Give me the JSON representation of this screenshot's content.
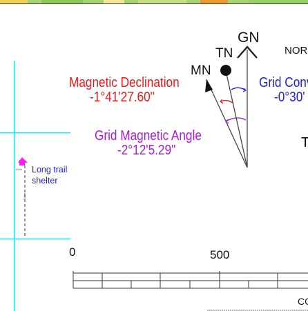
{
  "north_arrows": {
    "gn_label": "GN",
    "tn_label": "TN",
    "mn_label": "MN"
  },
  "declinations": {
    "magnetic_title": "Magnetic Declination",
    "magnetic_value": "-1°41'27.60\"",
    "grid_magnetic_title": "Grid Magnetic Angle",
    "grid_magnetic_value": "-2°12'5.29\"",
    "grid_convergence_title": "Grid Conv",
    "grid_convergence_value": "-0°30'"
  },
  "cutoff_text": {
    "north": "NOR",
    "t_letter": "T",
    "bottom_right": "CO"
  },
  "map_feature": {
    "shelter_label_line1": "Long trail",
    "shelter_label_line2": "shelter",
    "tick_label_small": "100m",
    "tick_label_vertical": "700m"
  },
  "scale_bar": {
    "label_start": "0",
    "label_mid": "500"
  },
  "colors": {
    "magnetic": "#e8191c",
    "grid_magnetic": "#a41fd3",
    "grid_convergence": "#1e22d4",
    "grid_lines": "#25d3e3",
    "shelter_marker": "#ff1aff"
  }
}
